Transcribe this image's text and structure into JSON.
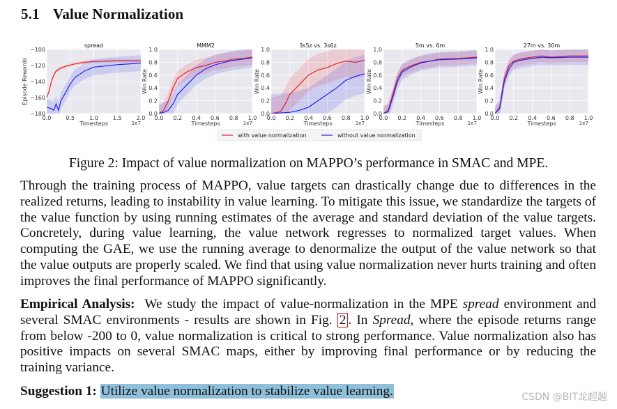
{
  "section": {
    "number": "5.1",
    "title": "Value Normalization"
  },
  "figure": {
    "caption": "Figure 2: Impact of value normalization on MAPPO’s performance in SMAC and MPE.",
    "legend": {
      "with": "with value normalization",
      "without": "without value normalization"
    }
  },
  "colors": {
    "with": "#ee2222",
    "without": "#2222ee",
    "panel_bg": "#e8e8ee",
    "grid": "#ffffff"
  },
  "chart_data": [
    {
      "type": "line",
      "title": "spread",
      "ylabel": "Episode Rewards",
      "xlabel": "Timesteps",
      "xscale": "1e7",
      "xlim": [
        0,
        2.0
      ],
      "ylim": [
        -180,
        -100
      ],
      "xticks": [
        0.0,
        0.5,
        1.0,
        1.5,
        2.0
      ],
      "xtick_labels": [
        "0.0",
        "0.5",
        "1.0",
        "1.5",
        "2.0"
      ],
      "yticks": [
        -180,
        -160,
        -140,
        -120,
        -100
      ],
      "ytick_labels": [
        "−180",
        "−160",
        "−140",
        "−120",
        "−100"
      ],
      "series": [
        {
          "name": "with value normalization",
          "x": [
            0,
            0.05,
            0.1,
            0.15,
            0.2,
            0.3,
            0.4,
            0.6,
            0.8,
            1.0,
            1.5,
            2.0
          ],
          "y": [
            -160,
            -152,
            -140,
            -132,
            -127,
            -123,
            -121,
            -118,
            -116,
            -115,
            -114,
            -114
          ],
          "band": 2
        },
        {
          "name": "without value normalization",
          "x": [
            0,
            0.1,
            0.15,
            0.2,
            0.25,
            0.3,
            0.4,
            0.5,
            0.6,
            0.8,
            1.0,
            1.5,
            2.0
          ],
          "y": [
            -172,
            -174,
            -176,
            -168,
            -176,
            -164,
            -154,
            -143,
            -135,
            -127,
            -122,
            -119,
            -117
          ],
          "band": 10
        }
      ]
    },
    {
      "type": "line",
      "title": "MMM2",
      "ylabel": "Win Rate",
      "xlabel": "Timesteps",
      "xscale": "1e7",
      "xlim": [
        0,
        1.0
      ],
      "ylim": [
        0,
        1.0
      ],
      "xticks": [
        0.0,
        0.2,
        0.4,
        0.6,
        0.8,
        1.0
      ],
      "xtick_labels": [
        "0.0",
        "0.2",
        "0.4",
        "0.6",
        "0.8",
        "1.0"
      ],
      "yticks": [
        0.0,
        0.2,
        0.4,
        0.6,
        0.8,
        1.0
      ],
      "ytick_labels": [
        "0.0",
        "0.2",
        "0.4",
        "0.6",
        "0.8",
        "1.0"
      ],
      "series": [
        {
          "name": "with value normalization",
          "x": [
            0,
            0.05,
            0.1,
            0.15,
            0.2,
            0.3,
            0.4,
            0.5,
            0.6,
            0.7,
            0.8,
            0.9,
            1.0
          ],
          "y": [
            0,
            0.05,
            0.2,
            0.4,
            0.55,
            0.65,
            0.72,
            0.75,
            0.8,
            0.82,
            0.85,
            0.86,
            0.88
          ],
          "band": 0.12
        },
        {
          "name": "without value normalization",
          "x": [
            0,
            0.05,
            0.1,
            0.15,
            0.2,
            0.3,
            0.4,
            0.5,
            0.6,
            0.7,
            0.8,
            0.9,
            1.0
          ],
          "y": [
            0,
            0.02,
            0.05,
            0.15,
            0.3,
            0.45,
            0.6,
            0.7,
            0.76,
            0.8,
            0.83,
            0.85,
            0.87
          ],
          "band": 0.15
        }
      ]
    },
    {
      "type": "line",
      "title": "3s5z vs. 3s6z",
      "ylabel": "Win Rate",
      "xlabel": "Timesteps",
      "xscale": "1e7",
      "xlim": [
        0,
        1.0
      ],
      "ylim": [
        0,
        1.0
      ],
      "xticks": [
        0.0,
        0.2,
        0.4,
        0.6,
        0.8,
        1.0
      ],
      "xtick_labels": [
        "0.0",
        "0.2",
        "0.4",
        "0.6",
        "0.8",
        "1.0"
      ],
      "yticks": [
        0.0,
        0.2,
        0.4,
        0.6,
        0.8,
        1.0
      ],
      "ytick_labels": [
        "0.0",
        "0.2",
        "0.4",
        "0.6",
        "0.8",
        "1.0"
      ],
      "series": [
        {
          "name": "with value normalization",
          "x": [
            0,
            0.1,
            0.15,
            0.2,
            0.3,
            0.4,
            0.5,
            0.6,
            0.7,
            0.8,
            0.9,
            1.0
          ],
          "y": [
            0,
            0.03,
            0.15,
            0.3,
            0.45,
            0.6,
            0.68,
            0.72,
            0.78,
            0.82,
            0.8,
            0.83
          ],
          "band": 0.25
        },
        {
          "name": "without value normalization",
          "x": [
            0,
            0.2,
            0.3,
            0.4,
            0.5,
            0.6,
            0.7,
            0.8,
            0.9,
            1.0
          ],
          "y": [
            0,
            0.02,
            0.05,
            0.1,
            0.2,
            0.3,
            0.4,
            0.52,
            0.58,
            0.62
          ],
          "band": 0.3
        }
      ]
    },
    {
      "type": "line",
      "title": "5m vs. 6m",
      "ylabel": "Win Rate",
      "xlabel": "Timesteps",
      "xscale": "1e7",
      "xlim": [
        0,
        1.0
      ],
      "ylim": [
        0,
        1.0
      ],
      "xticks": [
        0.0,
        0.2,
        0.4,
        0.6,
        0.8,
        1.0
      ],
      "xtick_labels": [
        "0.0",
        "0.2",
        "0.4",
        "0.6",
        "0.8",
        "1.0"
      ],
      "yticks": [
        0.0,
        0.2,
        0.4,
        0.6,
        0.8,
        1.0
      ],
      "ytick_labels": [
        "0.0",
        "0.2",
        "0.4",
        "0.6",
        "0.8",
        "1.0"
      ],
      "series": [
        {
          "name": "with value normalization",
          "x": [
            0,
            0.05,
            0.1,
            0.15,
            0.2,
            0.3,
            0.4,
            0.5,
            0.6,
            0.8,
            1.0
          ],
          "y": [
            0,
            0.05,
            0.3,
            0.55,
            0.68,
            0.75,
            0.8,
            0.82,
            0.85,
            0.86,
            0.88
          ],
          "band": 0.1
        },
        {
          "name": "without value normalization",
          "x": [
            0,
            0.05,
            0.1,
            0.15,
            0.2,
            0.3,
            0.4,
            0.5,
            0.6,
            0.8,
            1.0
          ],
          "y": [
            0,
            0.03,
            0.25,
            0.5,
            0.65,
            0.73,
            0.79,
            0.82,
            0.84,
            0.85,
            0.87
          ],
          "band": 0.12
        }
      ]
    },
    {
      "type": "line",
      "title": "27m vs. 30m",
      "ylabel": "Win Rate",
      "xlabel": "Timesteps",
      "xscale": "1e7",
      "xlim": [
        0,
        1.0
      ],
      "ylim": [
        0,
        1.0
      ],
      "xticks": [
        0.0,
        0.2,
        0.4,
        0.6,
        0.8,
        1.0
      ],
      "xtick_labels": [
        "0.0",
        "0.2",
        "0.4",
        "0.6",
        "0.8",
        "1.0"
      ],
      "yticks": [
        0.0,
        0.2,
        0.4,
        0.6,
        0.8,
        1.0
      ],
      "ytick_labels": [
        "0.0",
        "0.2",
        "0.4",
        "0.6",
        "0.8",
        "1.0"
      ],
      "series": [
        {
          "name": "with value normalization",
          "x": [
            0,
            0.05,
            0.1,
            0.15,
            0.2,
            0.3,
            0.4,
            0.5,
            0.6,
            0.8,
            1.0
          ],
          "y": [
            0,
            0.1,
            0.55,
            0.75,
            0.82,
            0.86,
            0.88,
            0.9,
            0.88,
            0.9,
            0.9
          ],
          "band": 0.1
        },
        {
          "name": "without value normalization",
          "x": [
            0,
            0.05,
            0.1,
            0.15,
            0.2,
            0.3,
            0.4,
            0.5,
            0.6,
            0.8,
            1.0
          ],
          "y": [
            0,
            0.08,
            0.5,
            0.7,
            0.8,
            0.84,
            0.86,
            0.88,
            0.87,
            0.88,
            0.88
          ],
          "band": 0.12
        }
      ]
    }
  ],
  "paragraph1": "Through the training process of MAPPO, value targets can drastically change due to differences in the realized returns, leading to instability in value learning. To mitigate this issue, we standardize the targets of the value function by using running estimates of the average and standard deviation of the value targets. Concretely, during value learning, the value network regresses to normalized target values. When computing the GAE, we use the running average to denormalize the output of the value network so that the value outputs are properly scaled. We find that using value normalization never hurts training and often improves the final performance of MAPPO significantly.",
  "paragraph2": {
    "label": "Empirical Analysis:",
    "text_a": "We study the impact of value-normalization in the MPE ",
    "env_spread": "spread",
    "text_b": " environment and several SMAC environments - results are shown in Fig. ",
    "fig_ref": "2",
    "text_c": ".  In ",
    "env_spread_cap": "Spread",
    "text_d": ", where the episode returns range from below -200 to 0, value normalization is critical to strong performance.  Value normalization also has positive impacts on several SMAC maps, either by improving final performance or by reducing the training variance."
  },
  "suggestion": {
    "label": "Suggestion 1:",
    "text": "Utilize value normalization to stabilize value learning."
  },
  "watermark": "CSDN @BIT龙超越"
}
